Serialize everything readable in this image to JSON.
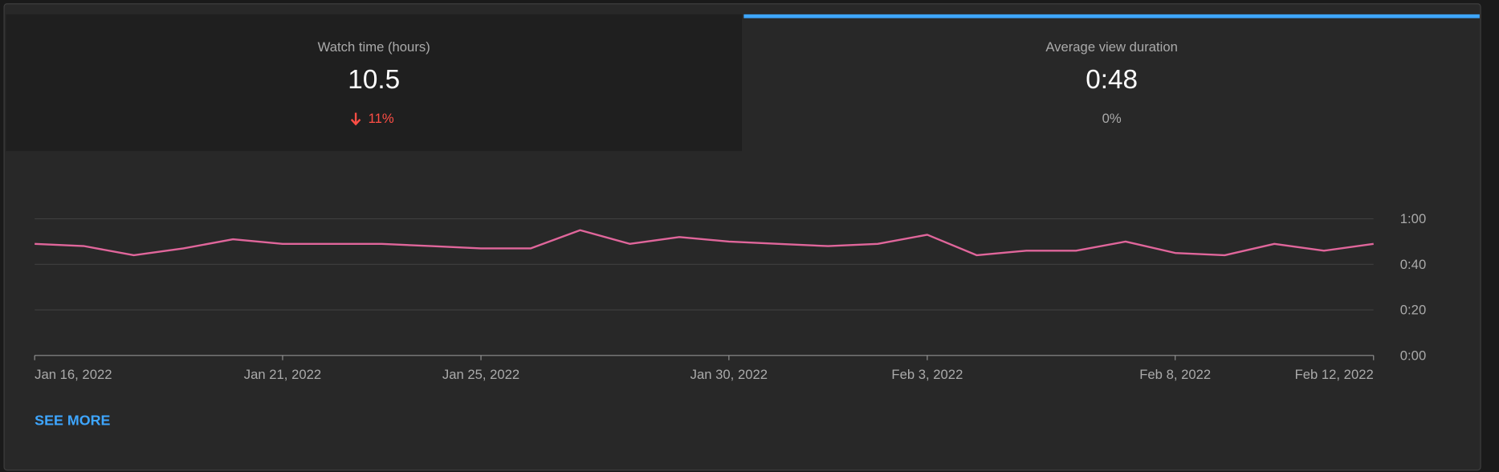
{
  "cards": [
    {
      "title": "Watch time (hours)",
      "value": "10.5",
      "change": "11%"
    },
    {
      "title": "Average view duration",
      "value": "0:48",
      "change": "0%"
    }
  ],
  "chart_data": {
    "type": "line",
    "categories": [
      "Jan 16, 2022",
      null,
      null,
      null,
      null,
      "Jan 21, 2022",
      null,
      null,
      null,
      "Jan 25, 2022",
      null,
      null,
      null,
      null,
      "Jan 30, 2022",
      null,
      null,
      null,
      "Feb 3, 2022",
      null,
      null,
      null,
      null,
      "Feb 8, 2022",
      null,
      null,
      null,
      "Feb 12, 2022"
    ],
    "values": [
      49,
      48,
      44,
      47,
      51,
      49,
      49,
      49,
      48,
      47,
      47,
      55,
      49,
      52,
      50,
      49,
      48,
      49,
      53,
      44,
      46,
      46,
      50,
      45,
      44,
      49,
      46,
      49
    ],
    "color": "#e0669b",
    "ylim": [
      0,
      60
    ],
    "yticks": [
      {
        "value": 0,
        "label": "0:00"
      },
      {
        "value": 20,
        "label": "0:20"
      },
      {
        "value": 40,
        "label": "0:40"
      },
      {
        "value": 60,
        "label": "1:00"
      }
    ],
    "grid": true
  },
  "link": "SEE MORE"
}
